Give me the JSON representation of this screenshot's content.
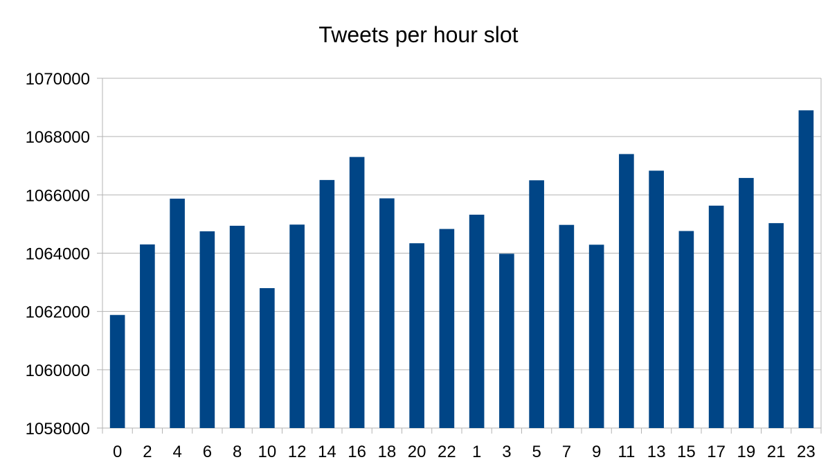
{
  "chart_data": {
    "type": "bar",
    "title": "Tweets per hour slot",
    "xlabel": "",
    "ylabel": "",
    "categories": [
      "0",
      "2",
      "4",
      "6",
      "8",
      "10",
      "12",
      "14",
      "16",
      "18",
      "20",
      "22",
      "1",
      "3",
      "5",
      "7",
      "9",
      "11",
      "13",
      "15",
      "17",
      "19",
      "21",
      "23"
    ],
    "values": [
      1061880,
      1064300,
      1065870,
      1064750,
      1064940,
      1062800,
      1064980,
      1066510,
      1067300,
      1065880,
      1064340,
      1064830,
      1065320,
      1063980,
      1066500,
      1064970,
      1064290,
      1067400,
      1066830,
      1064760,
      1065630,
      1066580,
      1065030,
      1068900
    ],
    "ylim": [
      1058000,
      1070000
    ],
    "yticks": [
      1058000,
      1060000,
      1062000,
      1064000,
      1066000,
      1068000,
      1070000
    ],
    "grid": true,
    "legend": "none",
    "colors": {
      "bar": "#004586",
      "grid": "#b3b3b3",
      "axis": "#b3b3b3",
      "text": "#000000"
    }
  }
}
